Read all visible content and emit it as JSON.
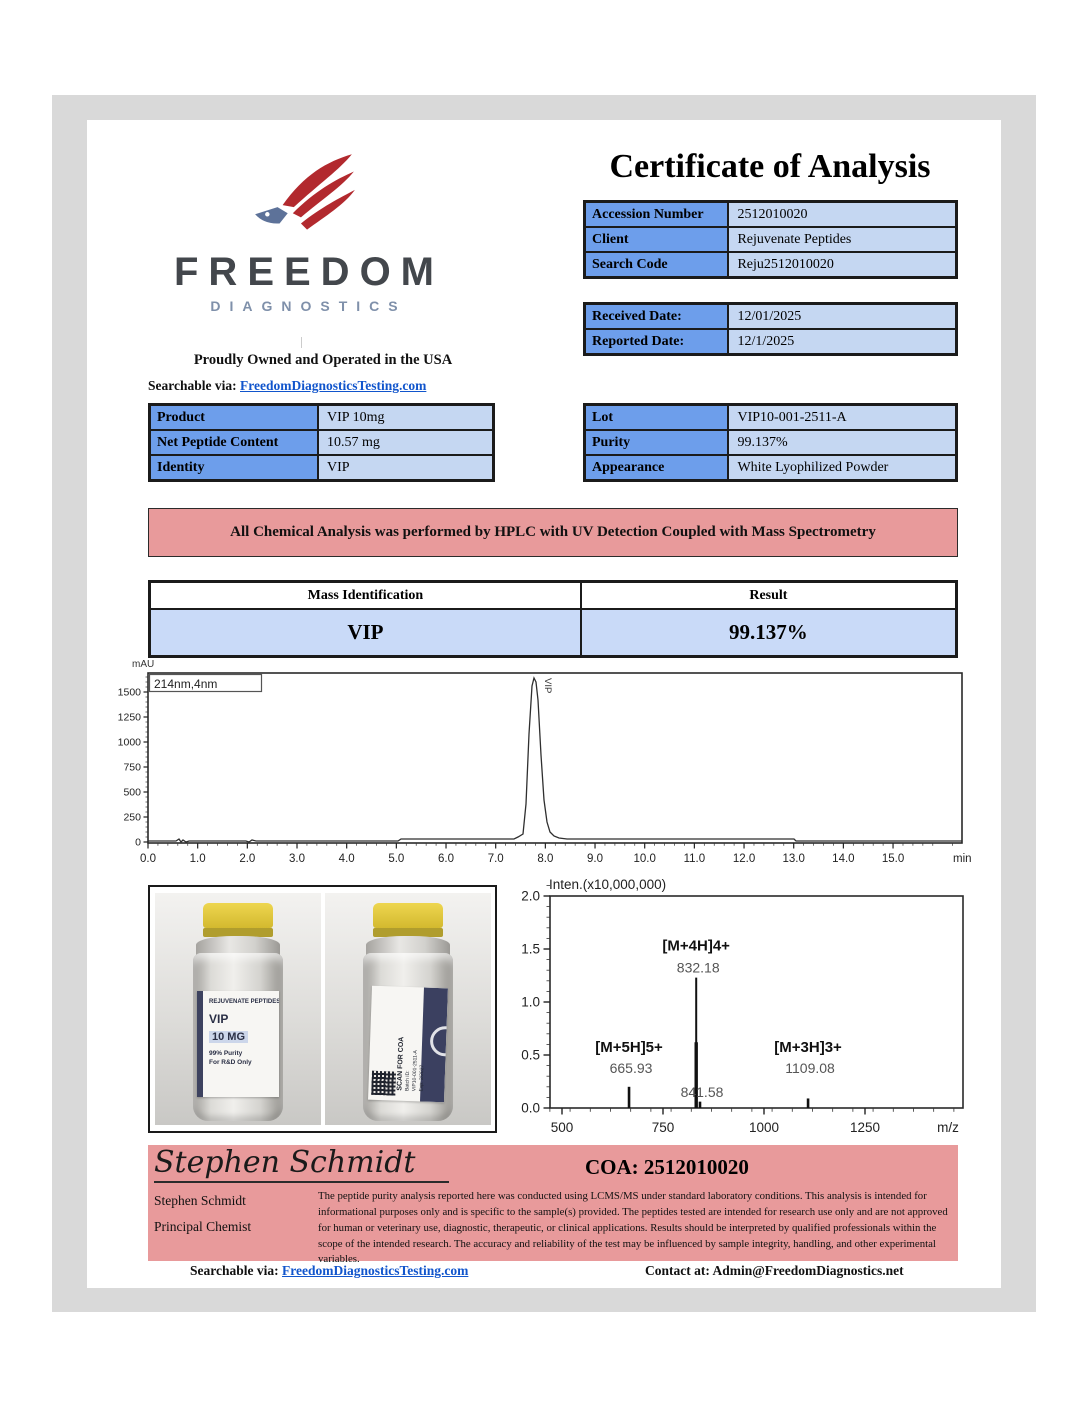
{
  "brand": {
    "name": "FREEDOM",
    "subname": "DIAGNOSTICS",
    "tagline": "Proudly Owned and Operated in the USA",
    "searchable_label": "Searchable via: ",
    "searchable_link": "FreedomDiagnosticsTesting.com"
  },
  "title": "Certificate of Analysis",
  "accession_table": {
    "rows": [
      {
        "label": "Accession Number",
        "value": "2512010020"
      },
      {
        "label": "Client",
        "value": "Rejuvenate Peptides"
      },
      {
        "label": "Search Code",
        "value": "Reju2512010020"
      }
    ]
  },
  "dates_table": {
    "rows": [
      {
        "label": "Received Date:",
        "value": "12/01/2025"
      },
      {
        "label": "Reported Date:",
        "value": "12/1/2025"
      }
    ]
  },
  "product_table": {
    "rows": [
      {
        "label": "Product",
        "value": "VIP 10mg"
      },
      {
        "label": "Net Peptide Content",
        "value": "10.57 mg"
      },
      {
        "label": "Identity",
        "value": "VIP"
      }
    ]
  },
  "lot_table": {
    "rows": [
      {
        "label": "Lot",
        "value": "VIP10-001-2511-A"
      },
      {
        "label": "Purity",
        "value": "99.137%"
      },
      {
        "label": "Appearance",
        "value": "White Lyophilized Powder"
      }
    ]
  },
  "banner": "All Chemical Analysis was performed by HPLC with UV Detection Coupled with Mass Spectrometry",
  "result_table": {
    "headers": [
      "Mass Identification",
      "Result"
    ],
    "row": [
      "VIP",
      "99.137%"
    ]
  },
  "chart_data": [
    {
      "type": "line",
      "title": "214nm,4nm",
      "ylabel": "mAU",
      "xlabel": "min",
      "x_ticks": [
        0,
        1,
        2,
        3,
        4,
        5,
        6,
        7,
        8,
        9,
        10,
        11,
        12,
        13,
        14,
        15
      ],
      "y_ticks": [
        0,
        250,
        500,
        750,
        1000,
        1250,
        1500
      ],
      "xlim": [
        0,
        16.4
      ],
      "ylim": [
        0,
        1700
      ],
      "series": [
        {
          "name": "VIP",
          "peak_retention_min": 7.8,
          "peak_height_mAU": 1620
        }
      ]
    },
    {
      "type": "bar",
      "title": "Inten.(x10,000,000)",
      "xlabel": "m/z",
      "x_ticks": [
        500,
        750,
        1000,
        1250
      ],
      "y_ticks": [
        0,
        0.5,
        1,
        1.5,
        2
      ],
      "xlim": [
        470,
        1490
      ],
      "ylim": [
        0,
        2.15
      ],
      "peaks": [
        {
          "mz": "665.93",
          "intensity": 0.2,
          "label": "[M+5H]5+"
        },
        {
          "mz": "832.18",
          "intensity": 1.23,
          "label": "[M+4H]4+"
        },
        {
          "mz": "841.58",
          "intensity": 0.06,
          "label": ""
        },
        {
          "mz": "1109.08",
          "intensity": 0.09,
          "label": "[M+3H]3+"
        }
      ]
    }
  ],
  "vial_photo": {
    "left_label": [
      "REJUVENATE PEPTIDES",
      "VIP",
      "10 MG",
      "99% Purity",
      "For R&D Only"
    ],
    "right_label": [
      "SCAN FOR COA",
      "Batch ID:",
      "VIP10-001-2511-A",
      "Exp: 2/2027"
    ]
  },
  "signature": {
    "script": "Stephen Schmidt",
    "coa": "COA: 2512010020",
    "name": "Stephen Schmidt",
    "role": "Principal Chemist",
    "disclaimer": "The peptide purity analysis reported here was conducted using LCMS/MS under standard laboratory conditions. This analysis is intended for informational purposes only and is specific to the sample(s) provided. The peptides tested are intended for research use only and are not approved for human or veterinary use, diagnostic, therapeutic, or clinical applications. Results should be interpreted by qualified professionals within the scope of the intended research. The accuracy and reliability of the test may be influenced by sample integrity, handling, and other experimental variables."
  },
  "footer": {
    "searchable_label": "Searchable via: ",
    "searchable_link": "FreedomDiagnosticsTesting.com",
    "contact": "Contact at: Admin@FreedomDiagnostics.net"
  },
  "colors": {
    "table_header_blue": "#6d9eeb",
    "table_value_blue": "#c5d7f2",
    "result_row_blue": "#c9daf8",
    "banner_pink": "#e89a9b",
    "frame_gray": "#d9d9d9",
    "link_blue": "#1155cc",
    "logo_red": "#b2292e",
    "logo_slate": "#5d7299"
  }
}
